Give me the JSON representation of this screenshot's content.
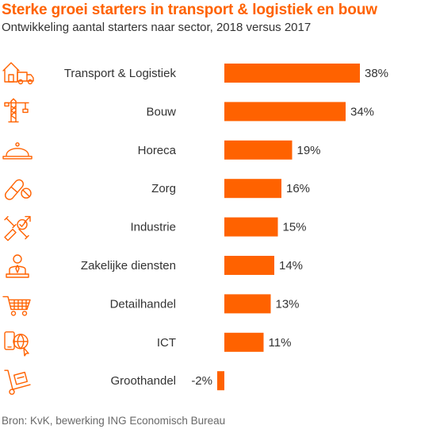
{
  "title": "Sterke groei starters in transport & logistiek en bouw",
  "subtitle": "Ontwikkeling aantal starters naar sector, 2018 versus 2017",
  "source": "Bron: KvK, bewerking ING Economisch Bureau",
  "colors": {
    "accent": "#ff6200",
    "text": "#333333",
    "source": "#696969"
  },
  "chart_data": {
    "type": "bar",
    "orientation": "horizontal",
    "categories": [
      "Transport & Logistiek",
      "Bouw",
      "Horeca",
      "Zorg",
      "Industrie",
      "Zakelijke diensten",
      "Detailhandel",
      "ICT",
      "Groothandel"
    ],
    "values": [
      38,
      34,
      19,
      16,
      15,
      14,
      13,
      11,
      -2
    ],
    "value_labels": [
      "38%",
      "34%",
      "19%",
      "16%",
      "15%",
      "14%",
      "13%",
      "11%",
      "-2%"
    ],
    "icons": [
      "truck-warehouse-icon",
      "crane-icon",
      "cloche-icon",
      "pills-icon",
      "tools-icon",
      "businessman-icon",
      "shopping-cart-icon",
      "devices-globe-icon",
      "hand-truck-icon"
    ],
    "unit": "%",
    "grid": false,
    "legend": "none"
  }
}
